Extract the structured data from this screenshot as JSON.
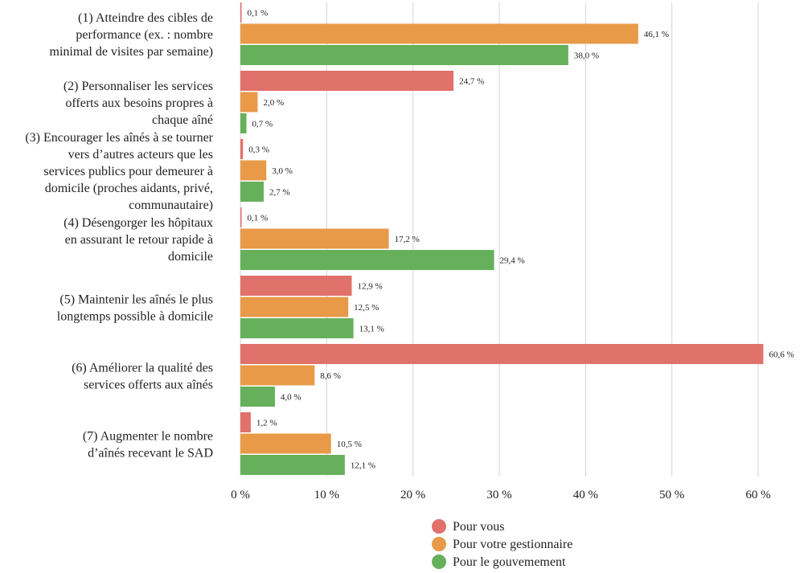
{
  "chart_data": {
    "type": "bar",
    "orientation": "horizontal",
    "categories": [
      [
        "(1) Atteindre des cibles de",
        "performance (ex. : nombre",
        "minimal de visites par semaine)"
      ],
      [
        "(2) Personnaliser les services",
        "offerts aux besoins propres à",
        "chaque aîné"
      ],
      [
        "(3) Encourager les aînés à se tourner",
        "vers d’autres acteurs que les",
        "services publics pour demeurer à",
        "domicile (proches aidants, privé,",
        "communautaire)"
      ],
      [
        "(4) Désengorger les hôpitaux",
        "en assurant le retour rapide à",
        "domicile"
      ],
      [
        "(5) Maintenir les aînés le plus",
        "longtemps possible à domicile"
      ],
      [
        "(6) Améliorer la qualité des",
        "services offerts aux aînés"
      ],
      [
        "(7) Augmenter le nombre",
        "d’aînés recevant le SAD"
      ]
    ],
    "series": [
      {
        "name": "Pour vous",
        "color": "#e0716b",
        "values": [
          0.1,
          24.7,
          0.3,
          0.1,
          12.9,
          60.6,
          1.2
        ],
        "labels": [
          "0,1 %",
          "24,7 %",
          "0,3 %",
          "0,1 %",
          "12,9 %",
          "60,6 %",
          "1,2 %"
        ]
      },
      {
        "name": "Pour votre gestionnaire",
        "color": "#e89a48",
        "values": [
          46.1,
          2.0,
          3.0,
          17.2,
          12.5,
          8.6,
          10.5
        ],
        "labels": [
          "46,1 %",
          "2,0 %",
          "3,0 %",
          "17,2 %",
          "12,5 %",
          "8,6 %",
          "10,5 %"
        ]
      },
      {
        "name": "Pour le gouvemement",
        "color": "#66b05c",
        "values": [
          38.0,
          0.7,
          2.7,
          29.4,
          13.1,
          4.0,
          12.1
        ],
        "labels": [
          "38,0 %",
          "0,7 %",
          "2,7 %",
          "29,4 %",
          "13,1 %",
          "4,0 %",
          "12,1 %"
        ]
      }
    ],
    "xlim": [
      0,
      60
    ],
    "ticks": [
      0,
      10,
      20,
      30,
      40,
      50,
      60
    ],
    "tick_labels": [
      "0 %",
      "10 %",
      "20 %",
      "30 %",
      "40 %",
      "50 %",
      "60 %"
    ],
    "grid": true,
    "legend": "bottom-center"
  }
}
